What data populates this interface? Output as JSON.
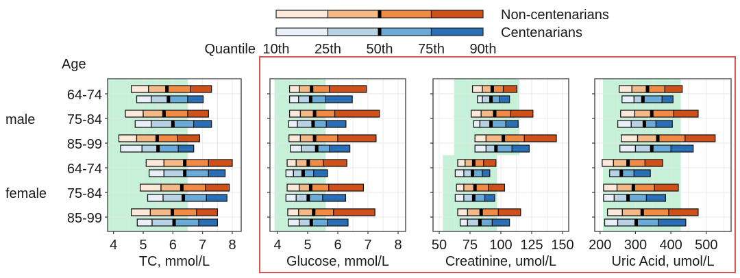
{
  "chart_data": {
    "type": "bar",
    "subtype": "stacked-quantile-range",
    "legend": {
      "title": "Quantile",
      "quantile_labels": [
        "10th",
        "25th",
        "50th",
        "75th",
        "90th"
      ],
      "series": [
        {
          "name": "Non-centenarians",
          "colors": [
            "#fde9da",
            "#f5b987",
            "#f08a45",
            "#d0501a"
          ]
        },
        {
          "name": "Centenarians",
          "colors": [
            "#eaf0f9",
            "#b8d3e6",
            "#6aaad8",
            "#2a6fb5"
          ]
        }
      ],
      "placement": "top-center"
    },
    "row_axis_title": "Age",
    "groups": [
      {
        "name": "male",
        "ages": [
          "64-74",
          "75-84",
          "85-99"
        ]
      },
      {
        "name": "female",
        "ages": [
          "64-74",
          "75-84",
          "85-99"
        ]
      }
    ],
    "highlight_box_color": "#d9534f",
    "reference_color": "#c6f0d8",
    "panels": [
      {
        "title": "TC, mmol/L",
        "xlim": [
          3.8,
          8.3
        ],
        "ticks": [
          4,
          5,
          6,
          7,
          8
        ],
        "reference_range": {
          "male": [
            3.8,
            6.5
          ],
          "female": [
            3.8,
            6.5
          ]
        },
        "values": {
          "male": {
            "64-74": {
              "Non-centenarians": [
                4.6,
                5.18,
                5.8,
                6.6,
                7.3
              ],
              "Centenarians": [
                4.78,
                5.27,
                5.85,
                6.5,
                7.02
              ]
            },
            "75-84": {
              "Non-centenarians": [
                4.4,
                5.0,
                5.7,
                6.5,
                7.2
              ],
              "Centenarians": [
                4.73,
                5.27,
                6.0,
                6.7,
                7.3
              ]
            },
            "85-99": {
              "Non-centenarians": [
                4.18,
                4.78,
                5.47,
                6.16,
                6.9
              ],
              "Centenarians": [
                4.24,
                4.96,
                5.5,
                6.18,
                6.7
              ]
            }
          },
          "female": {
            "64-74": {
              "Non-centenarians": [
                5.1,
                5.7,
                6.4,
                7.2,
                8.0
              ],
              "Centenarians": [
                5.2,
                5.7,
                6.4,
                7.2,
                7.76
              ]
            },
            "75-84": {
              "Non-centenarians": [
                4.9,
                5.6,
                6.3,
                7.1,
                7.9
              ],
              "Centenarians": [
                5.15,
                5.67,
                6.35,
                7.13,
                7.82
              ]
            },
            "85-99": {
              "Non-centenarians": [
                4.6,
                5.24,
                5.98,
                6.8,
                7.5
              ],
              "Centenarians": [
                4.8,
                5.3,
                6.04,
                6.87,
                7.5
              ]
            }
          }
        }
      },
      {
        "title": "Glucose, mmol/L",
        "xlim": [
          3.75,
          8.25
        ],
        "ticks": [
          4,
          5,
          6,
          7,
          8
        ],
        "reference_range": {
          "male": [
            3.9,
            5.6
          ],
          "female": [
            3.9,
            5.6
          ]
        },
        "values": {
          "male": {
            "64-74": {
              "Non-centenarians": [
                4.4,
                4.73,
                5.13,
                5.72,
                6.95
              ],
              "Centenarians": [
                4.4,
                4.7,
                5.1,
                5.6,
                6.48
              ]
            },
            "75-84": {
              "Non-centenarians": [
                4.4,
                4.76,
                5.23,
                5.9,
                7.38
              ],
              "Centenarians": [
                4.37,
                4.66,
                5.18,
                5.62,
                6.27
              ]
            },
            "85-99": {
              "Non-centenarians": [
                4.38,
                4.76,
                5.23,
                6.0,
                7.27
              ],
              "Centenarians": [
                4.43,
                4.79,
                5.3,
                5.73,
                6.4
              ]
            }
          },
          "female": {
            "64-74": {
              "Non-centenarians": [
                4.32,
                4.62,
                5.02,
                5.52,
                6.3
              ],
              "Centenarians": [
                4.28,
                4.53,
                4.85,
                5.2,
                5.66
              ]
            },
            "75-84": {
              "Non-centenarians": [
                4.32,
                4.72,
                5.1,
                5.7,
                6.85
              ],
              "Centenarians": [
                4.28,
                4.62,
                5.02,
                5.5,
                6.26
              ]
            },
            "85-99": {
              "Non-centenarians": [
                4.34,
                4.7,
                5.2,
                5.86,
                7.23
              ],
              "Centenarians": [
                4.36,
                4.72,
                5.12,
                5.66,
                6.34
              ]
            }
          }
        }
      },
      {
        "title": "Creatinine, umol/L",
        "xlim": [
          45,
          155
        ],
        "ticks": [
          50,
          75,
          100,
          125,
          150
        ],
        "reference_range": {
          "male": [
            62,
            115
          ],
          "female": [
            53,
            97
          ]
        },
        "values": {
          "male": {
            "64-74": {
              "Non-centenarians": [
                77,
                85,
                93,
                102,
                113
              ],
              "Centenarians": [
                81,
                85,
                92,
                99,
                107
              ]
            },
            "75-84": {
              "Non-centenarians": [
                76,
                84,
                95,
                108,
                126
              ],
              "Centenarians": [
                78,
                83,
                92,
                104,
                114
              ]
            },
            "85-99": {
              "Non-centenarians": [
                79,
                88,
                102,
                119,
                145
              ],
              "Centenarians": [
                79,
                88,
                96,
                109,
                123
              ]
            }
          },
          "female": {
            "64-74": {
              "Non-centenarians": [
                65,
                71,
                78,
                86,
                96
              ],
              "Centenarians": [
                63,
                70,
                77,
                85,
                91
              ]
            },
            "75-84": {
              "Non-centenarians": [
                64,
                70,
                79,
                90,
                103
              ],
              "Centenarians": [
                63,
                70,
                78,
                87,
                95
              ]
            },
            "85-99": {
              "Non-centenarians": [
                65,
                73,
                84,
                98,
                116
              ],
              "Centenarians": [
                67,
                73,
                83,
                93,
                107
              ]
            }
          }
        }
      },
      {
        "title": "Uric Acid, umol/L",
        "xlim": [
          185,
          570
        ],
        "ticks": [
          200,
          300,
          400,
          500
        ],
        "reference_range": {
          "male": [
            208,
            428
          ],
          "female": [
            208,
            428
          ]
        },
        "values": {
          "male": {
            "64-74": {
              "Non-centenarians": [
                254,
                290,
                334,
                383,
                432
              ],
              "Centenarians": [
                262,
                296,
                321,
                375,
                406
              ]
            },
            "75-84": {
              "Non-centenarians": [
                258,
                298,
                346,
                408,
                477
              ],
              "Centenarians": [
                250,
                288,
                325,
                358,
                404
              ]
            },
            "85-99": {
              "Non-centenarians": [
                260,
                306,
                363,
                440,
                525
              ],
              "Centenarians": [
                256,
                300,
                346,
                400,
                463
              ]
            }
          },
          "female": {
            "64-74": {
              "Non-centenarians": [
                206,
                238,
                279,
                327,
                377
              ],
              "Centenarians": [
                227,
                227,
                260,
                296,
                342
              ]
            },
            "75-84": {
              "Non-centenarians": [
                210,
                248,
                294,
                354,
                421
              ],
              "Centenarians": [
                210,
                240,
                279,
                331,
                385
              ]
            },
            "85-99": {
              "Non-centenarians": [
                221,
                263,
                319,
                394,
                477
              ],
              "Centenarians": [
                213,
                250,
                302,
                365,
                442
              ]
            }
          }
        }
      }
    ]
  }
}
